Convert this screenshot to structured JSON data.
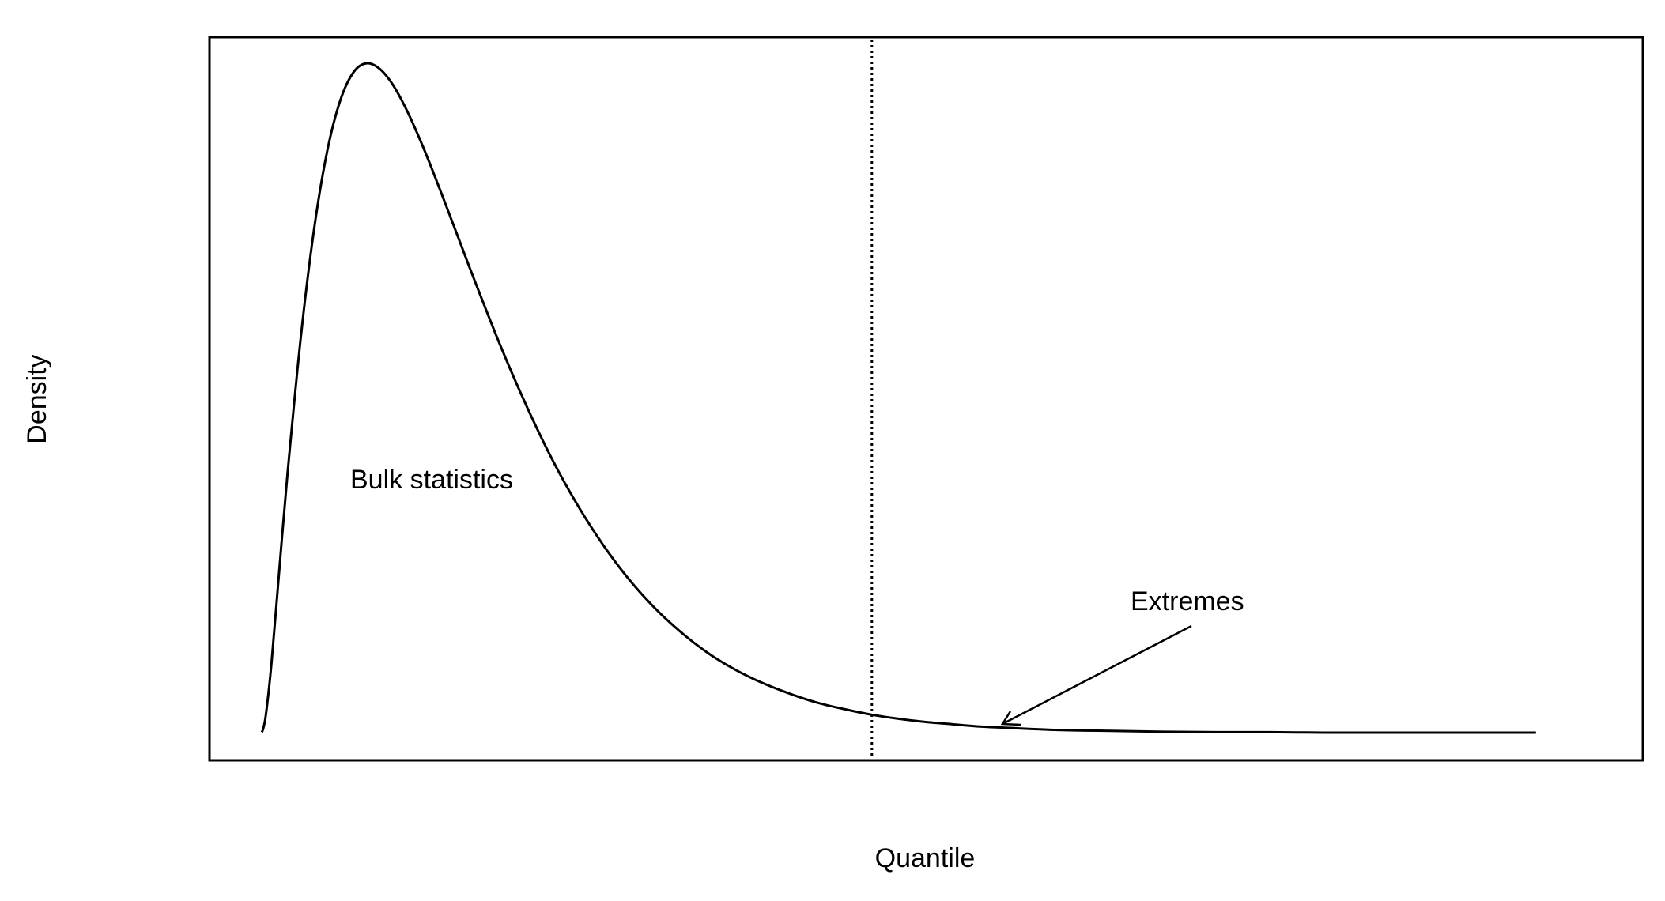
{
  "chart_data": {
    "type": "line",
    "title": "",
    "xlabel": "Quantile",
    "ylabel": "Density",
    "xlim": [
      0,
      25
    ],
    "ylim": [
      0,
      0.2
    ],
    "grid": false,
    "legend": "none",
    "series": [
      {
        "x": [
          0.02,
          0.05,
          0.1,
          0.2,
          0.35,
          0.5,
          0.75,
          1.0,
          1.25,
          1.5,
          1.75,
          2.0,
          2.25,
          2.5,
          2.75,
          3.0,
          3.25,
          3.5,
          3.75,
          4.0,
          4.5,
          5.0,
          5.5,
          6.0,
          6.5,
          7.0,
          7.5,
          8.0,
          8.5,
          9.0,
          9.5,
          10.0,
          10.5,
          11.0,
          11.5,
          12.0,
          12.5,
          13.0,
          13.5,
          14.0,
          15.0,
          16.0,
          17.0,
          18.0,
          19.0,
          20.0,
          21.0,
          22.0,
          23.0,
          24.0
        ],
        "y": [
          0.0001,
          0.0012,
          0.0045,
          0.0155,
          0.0368,
          0.0577,
          0.0881,
          0.1123,
          0.1299,
          0.1413,
          0.1475,
          0.1494,
          0.148,
          0.1443,
          0.1388,
          0.1322,
          0.1249,
          0.1172,
          0.1094,
          0.1016,
          0.0866,
          0.0729,
          0.0606,
          0.05,
          0.0409,
          0.0332,
          0.0268,
          0.0215,
          0.0171,
          0.0136,
          0.0108,
          0.0085,
          0.0066,
          0.0052,
          0.004,
          0.0031,
          0.0024,
          0.0019,
          0.0014,
          0.0011,
          0.0006,
          0.0004,
          0.0002,
          0.0001,
          0.0001,
          0.0,
          0.0,
          0.0,
          0.0,
          0.0
        ],
        "color": "#000000"
      }
    ],
    "threshold": 11.5,
    "annotations": [
      {
        "text": "Bulk statistics"
      },
      {
        "text": "Extremes"
      }
    ]
  }
}
